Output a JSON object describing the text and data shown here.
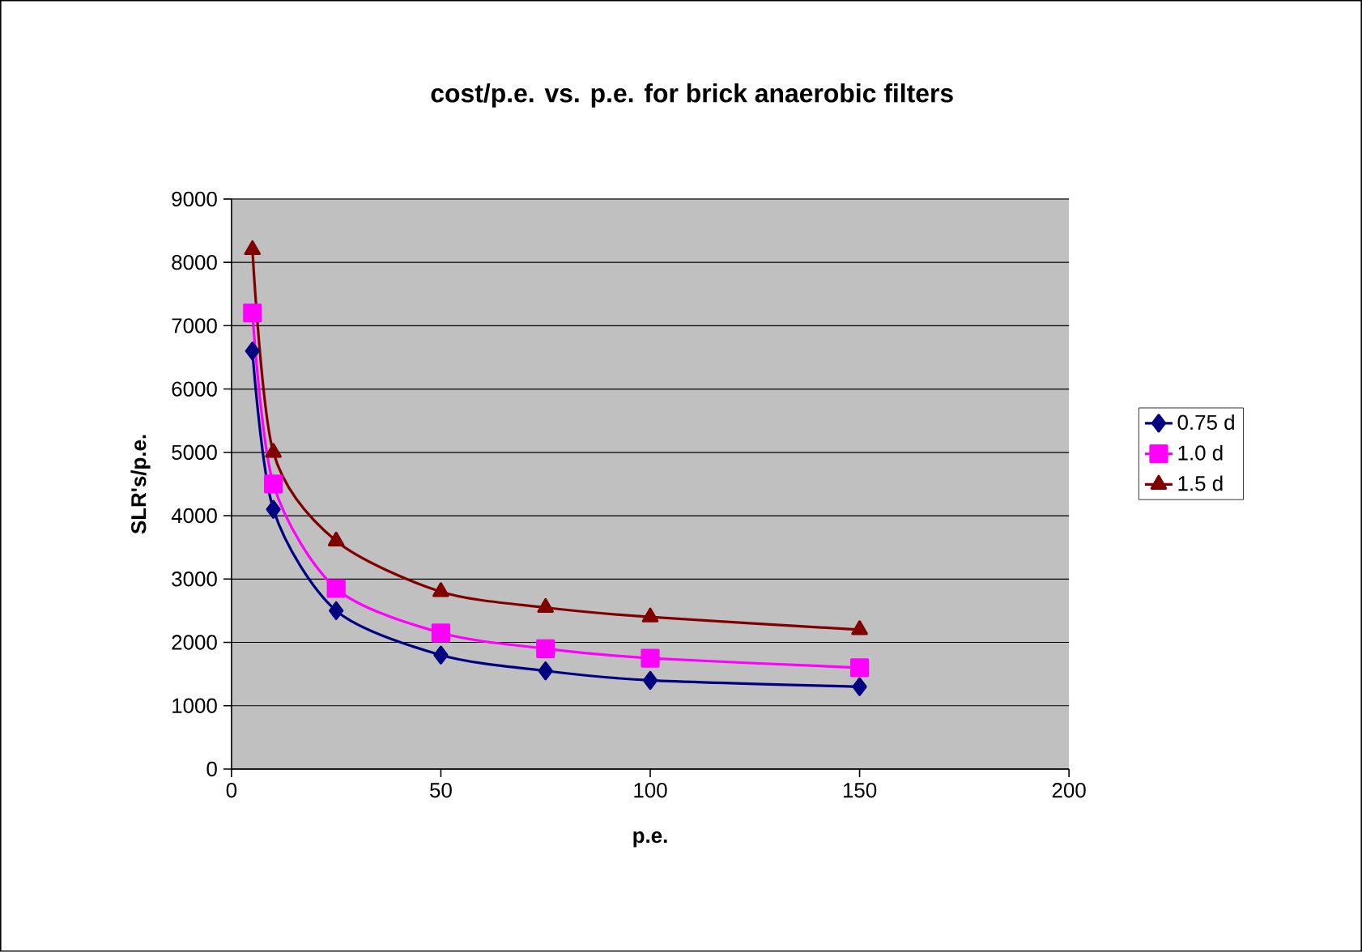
{
  "chart_data": {
    "type": "line",
    "title": "cost/p.e. vs. p.e. for brick anaerobic filters",
    "xlabel": "p.e.",
    "ylabel": "SLR's/p.e.",
    "x": [
      5,
      10,
      25,
      50,
      75,
      100,
      150
    ],
    "series": [
      {
        "name": "0.75 d",
        "color": "#000080",
        "marker": "diamond",
        "values": [
          6600,
          4100,
          2500,
          1800,
          1550,
          1400,
          1300
        ]
      },
      {
        "name": "1.0 d",
        "color": "#ff00ff",
        "marker": "square",
        "values": [
          7200,
          4500,
          2850,
          2150,
          1900,
          1750,
          1600
        ]
      },
      {
        "name": "1.5 d",
        "color": "#800000",
        "marker": "triangle",
        "values": [
          8200,
          5000,
          3600,
          2800,
          2550,
          2400,
          2200
        ]
      }
    ],
    "xlim": [
      0,
      200
    ],
    "ylim": [
      0,
      9000
    ],
    "xticks": [
      0,
      50,
      100,
      150,
      200
    ],
    "yticks": [
      0,
      1000,
      2000,
      3000,
      4000,
      5000,
      6000,
      7000,
      8000,
      9000
    ],
    "grid": "y",
    "legend": "right",
    "line_style": "solid"
  }
}
